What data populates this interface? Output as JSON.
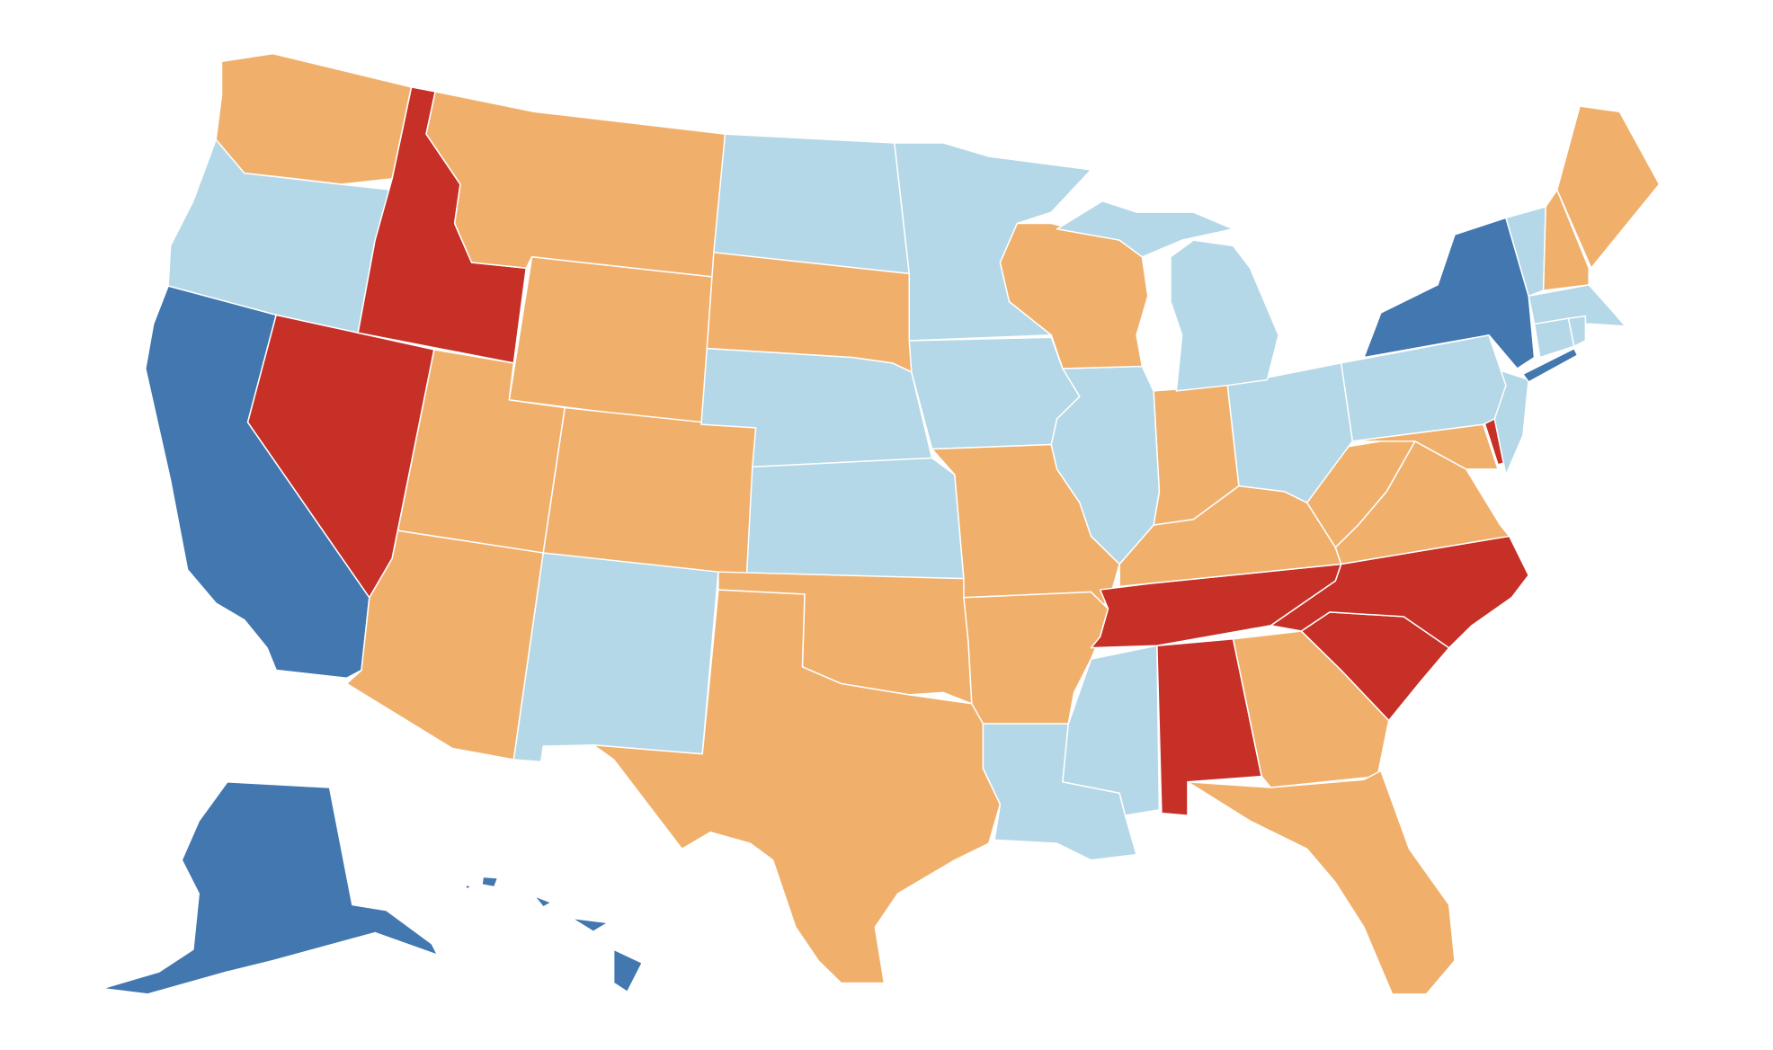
{
  "map": {
    "type": "choropleth",
    "region": "United States",
    "category_colors": {
      "dark-blue": "#4277b0",
      "light-blue": "#b4d8e7",
      "orange": "#f0b06c",
      "red": "#c63027"
    },
    "states": {
      "WA": "orange",
      "OR": "light-blue",
      "CA": "dark-blue",
      "NV": "red",
      "ID": "red",
      "MT": "orange",
      "WY": "orange",
      "UT": "orange",
      "CO": "orange",
      "AZ": "orange",
      "NM": "light-blue",
      "ND": "light-blue",
      "SD": "orange",
      "NE": "light-blue",
      "KS": "light-blue",
      "OK": "orange",
      "TX": "orange",
      "MN": "light-blue",
      "IA": "light-blue",
      "MO": "orange",
      "AR": "orange",
      "LA": "light-blue",
      "MS": "light-blue",
      "AL": "red",
      "GA": "orange",
      "FL": "orange",
      "SC": "red",
      "NC": "red",
      "TN": "red",
      "KY": "orange",
      "VA": "orange",
      "WV": "orange",
      "MD": "orange",
      "DE": "red",
      "NJ": "light-blue",
      "PA": "light-blue",
      "OH": "light-blue",
      "IN": "orange",
      "IL": "light-blue",
      "WI": "orange",
      "MI": "light-blue",
      "NY": "dark-blue",
      "VT": "light-blue",
      "NH": "orange",
      "ME": "orange",
      "MA": "light-blue",
      "CT": "light-blue",
      "RI": "light-blue",
      "AK": "dark-blue",
      "HI": "dark-blue"
    }
  }
}
